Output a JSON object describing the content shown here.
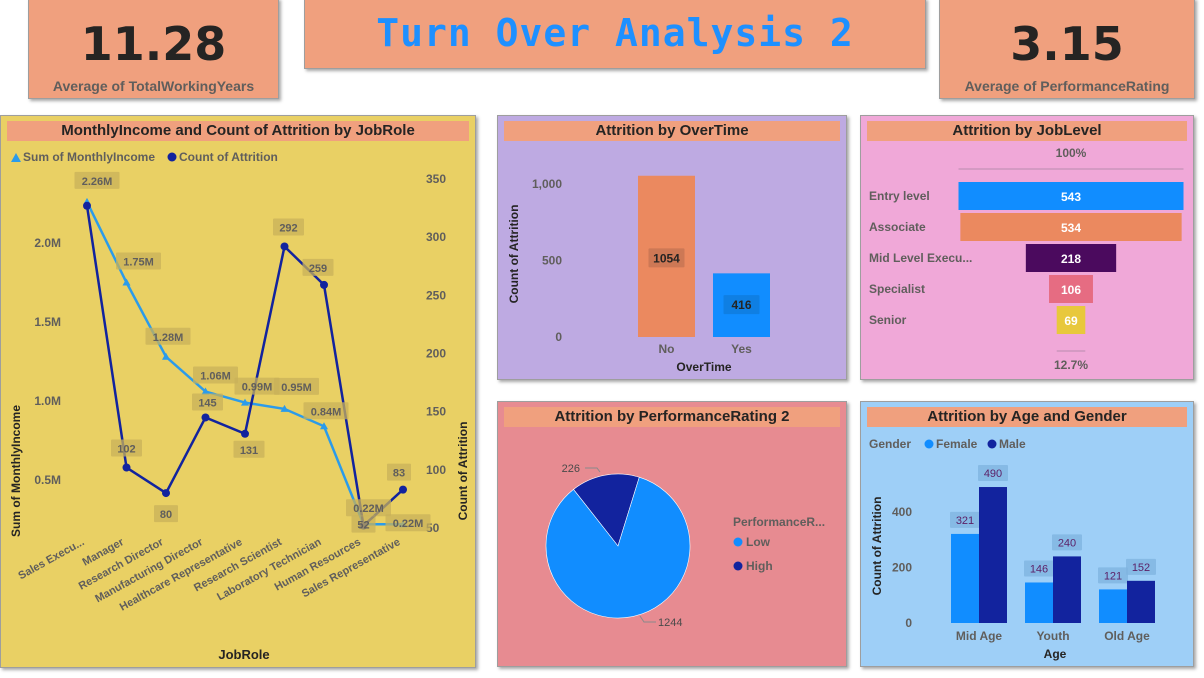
{
  "kpis": {
    "left": {
      "value": "11.28",
      "label": "Average of TotalWorkingYears"
    },
    "right": {
      "value": "3.15",
      "label": "Average of PerformanceRating"
    }
  },
  "dashboard_title": "Turn Over Analysis 2",
  "colors": {
    "orange": "#F0A07E",
    "blue": "#118DFF",
    "navy": "#12239E",
    "line_light": "#2B9BEA",
    "yellow_bg": "#E9D064",
    "purple_bg": "#BEAAE2",
    "pink_bg": "#F0A8D8",
    "red_bg": "#E78B91",
    "lightblue_bg": "#9ECFF7"
  },
  "chart_data": [
    {
      "id": "jobrole",
      "type": "line",
      "title": "MonthlyIncome and Count of Attrition by JobRole",
      "xlabel": "JobRole",
      "ylabel": "Sum of MonthlyIncome",
      "y2label": "Count of Attrition",
      "categories": [
        "Sales Execu...",
        "Manager",
        "Research Director",
        "Manufacturing Director",
        "Healthcare Representative",
        "Research Scientist",
        "Laboratory Technician",
        "Human Resources",
        "Sales Representative"
      ],
      "y_ticks": [
        "0.5M",
        "1.0M",
        "1.5M",
        "2.0M"
      ],
      "y2_ticks": [
        "50",
        "100",
        "150",
        "200",
        "250",
        "300",
        "350"
      ],
      "ylim": [
        0.2,
        2.4
      ],
      "y2lim": [
        50,
        350
      ],
      "series": [
        {
          "name": "Sum of MonthlyIncome",
          "axis": "left",
          "values": [
            2.26,
            1.75,
            1.28,
            1.06,
            0.99,
            0.95,
            0.84,
            0.22,
            0.22
          ],
          "labels": [
            "2.26M",
            "1.75M",
            "1.28M",
            "1.06M",
            "0.99M",
            "0.95M",
            "0.84M",
            "0.22M",
            "0.22M"
          ]
        },
        {
          "name": "Count of Attrition",
          "axis": "right",
          "values": [
            327,
            102,
            80,
            145,
            131,
            292,
            259,
            52,
            83
          ],
          "labels": [
            "",
            "102",
            "80",
            "145",
            "131",
            "292",
            "259",
            "52",
            "83"
          ]
        }
      ]
    },
    {
      "id": "overtime",
      "type": "bar",
      "title": "Attrition by OverTime",
      "xlabel": "OverTime",
      "ylabel": "Count of Attrition",
      "categories": [
        "No",
        "Yes"
      ],
      "values": [
        1054,
        416
      ],
      "y_ticks": [
        "0",
        "500",
        "1,000"
      ],
      "ylim": [
        0,
        1100
      ]
    },
    {
      "id": "joblevel",
      "type": "bar",
      "title": "Attrition by JobLevel",
      "categories": [
        "Entry level",
        "Associate",
        "Mid Level Execu...",
        "Specialist",
        "Senior"
      ],
      "values": [
        543,
        534,
        218,
        106,
        69
      ],
      "top_label": "100%",
      "bottom_label": "12.7%"
    },
    {
      "id": "performance",
      "type": "pie",
      "title": "Attrition by PerformanceRating 2",
      "legend_title": "PerformanceR...",
      "categories": [
        "Low",
        "High"
      ],
      "values": [
        1244,
        226
      ]
    },
    {
      "id": "agegender",
      "type": "bar",
      "title": "Attrition by Age and Gender",
      "legend_title": "Gender",
      "xlabel": "Age",
      "ylabel": "Count of Attrition",
      "categories": [
        "Mid Age",
        "Youth",
        "Old Age"
      ],
      "y_ticks": [
        "0",
        "200",
        "400"
      ],
      "ylim": [
        0,
        560
      ],
      "series": [
        {
          "name": "Female",
          "values": [
            321,
            146,
            121
          ]
        },
        {
          "name": "Male",
          "values": [
            490,
            240,
            152
          ]
        }
      ]
    }
  ]
}
